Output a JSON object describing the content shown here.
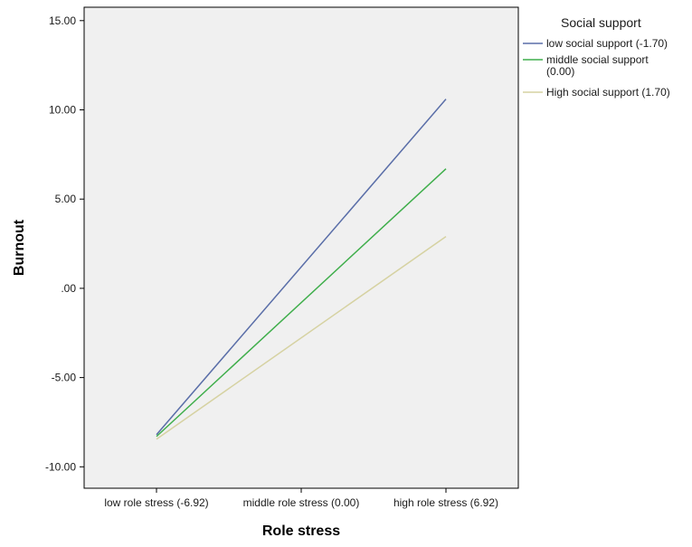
{
  "chart_data": {
    "type": "line",
    "xlabel": "Role stress",
    "ylabel": "Burnout",
    "categories": [
      "low role stress (-6.92)",
      "middle role stress (0.00)",
      "high role stress (6.92)"
    ],
    "ylim": [
      -11.2,
      15.75
    ],
    "yticks": [
      15,
      10,
      5,
      0,
      -5,
      -10
    ],
    "ytick_labels": [
      "15.00",
      "10.00",
      "5.00",
      ".00",
      "-5.00",
      "-10.00"
    ],
    "grid": false,
    "legend": {
      "title": "Social support",
      "placement": "outside-right-top",
      "entries": [
        [
          "low social support (-1.70)"
        ],
        [
          "middle social support",
          "(0.00)"
        ],
        [
          "High social support (1.70)"
        ]
      ]
    },
    "series": [
      {
        "name": "low social support (-1.70)",
        "color": "#5a6ea8",
        "values": [
          -8.2,
          null,
          10.6
        ]
      },
      {
        "name": "middle social support (0.00)",
        "color": "#3fae4b",
        "values": [
          -8.3,
          null,
          6.7
        ]
      },
      {
        "name": "High social support (1.70)",
        "color": "#d6d2a2",
        "values": [
          -8.45,
          null,
          2.9
        ]
      }
    ],
    "background": "#f0f0f0"
  }
}
